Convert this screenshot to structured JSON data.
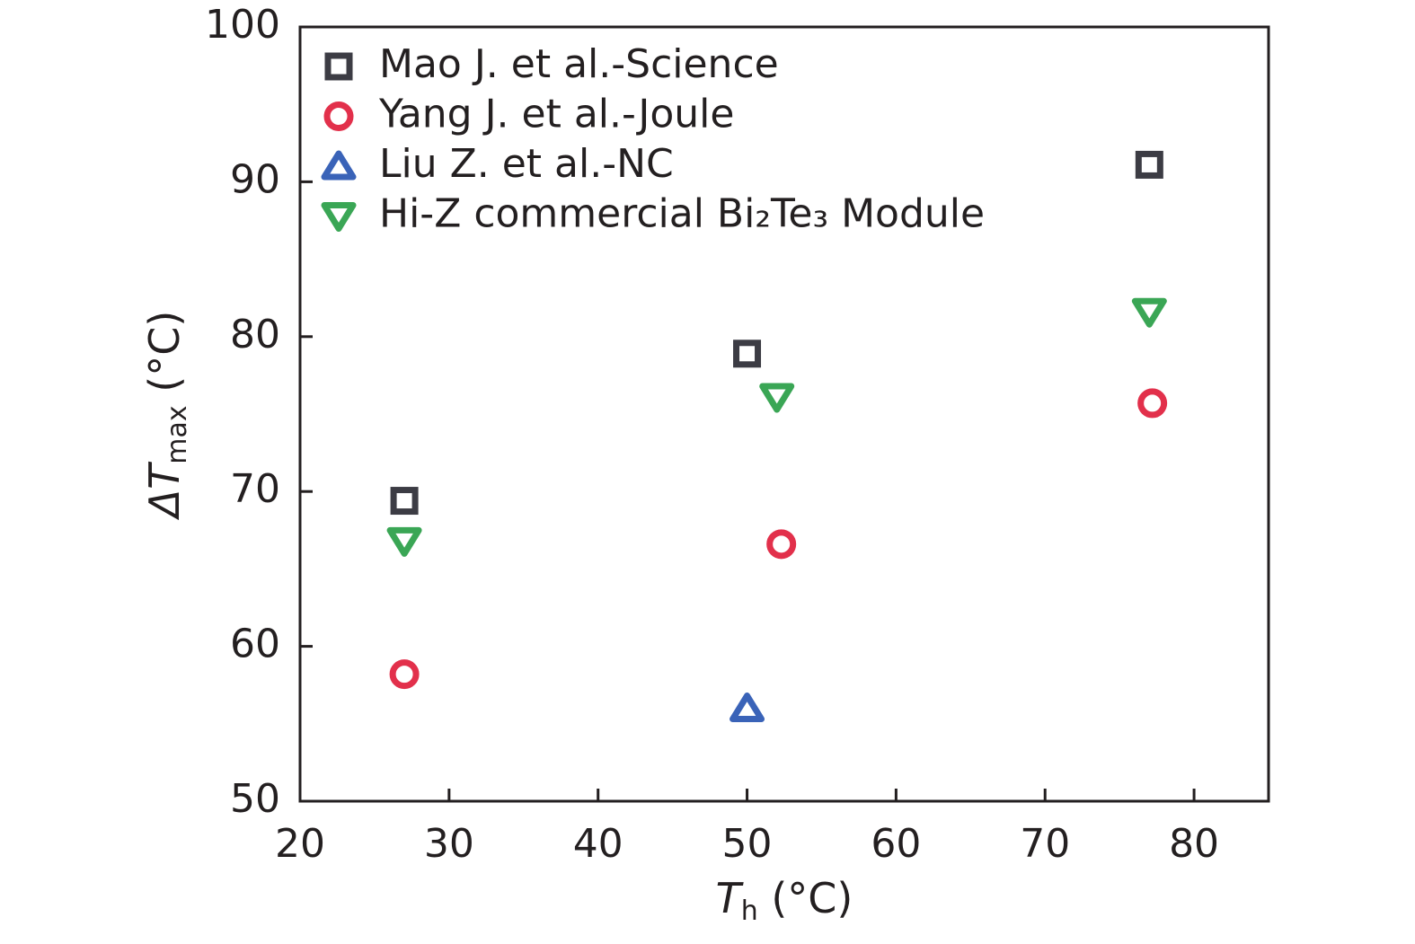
{
  "chart_data": {
    "type": "scatter",
    "x_label": {
      "symbol": "T",
      "subscript": "h",
      "unit": "(°C)"
    },
    "y_label": {
      "symbol": "ΔT",
      "subscript": "max",
      "unit": "(°C)"
    },
    "xlim": [
      20,
      85
    ],
    "xticks": [
      20,
      30,
      40,
      50,
      60,
      70,
      80
    ],
    "ylim": [
      50,
      100
    ],
    "yticks": [
      50,
      60,
      70,
      80,
      90,
      100
    ],
    "legend": "upper left",
    "series": [
      {
        "name": "Mao J. et al.-Science",
        "color": "#3c3c44",
        "marker": "square",
        "x": [
          27,
          50,
          77
        ],
        "values": [
          69.4,
          78.9,
          91.1
        ]
      },
      {
        "name": "Yang J. et al.-Joule",
        "color": "#e2304b",
        "marker": "circle",
        "x": [
          27,
          52.3,
          77.2
        ],
        "values": [
          58.2,
          66.6,
          75.7
        ]
      },
      {
        "name": "Liu Z. et al.-NC",
        "color": "#3a63b8",
        "marker": "triangle-up",
        "x": [
          50
        ],
        "values": [
          56
        ]
      },
      {
        "name": "Hi-Z commercial Bi₂Te₃ Module",
        "color": "#3aa655",
        "marker": "triangle-down",
        "x": [
          27,
          52,
          77
        ],
        "values": [
          66.8,
          76.1,
          81.6
        ]
      }
    ]
  }
}
